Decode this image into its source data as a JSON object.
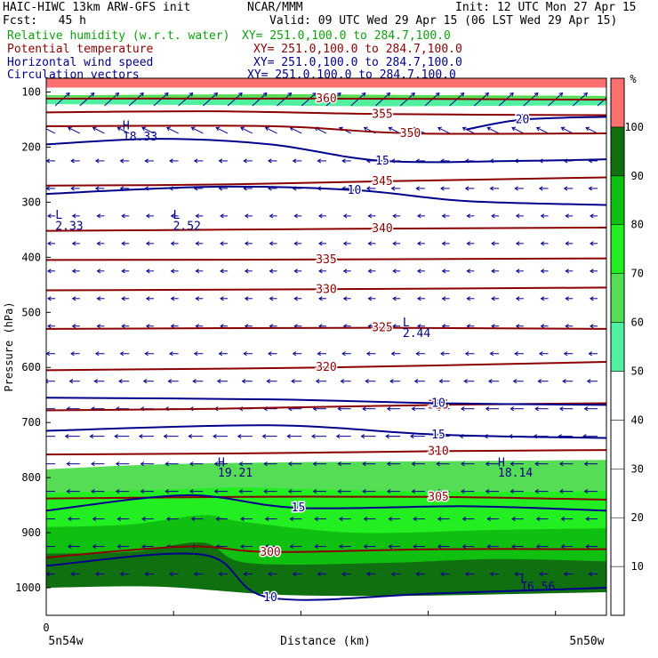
{
  "header": {
    "left1": "HAIC-HIWC 13km ARW-GFS init",
    "center1": "NCAR/MMM",
    "right1": "Init: 12 UTC Mon 27 Apr 15",
    "left2": "Fcst:   45 h",
    "right2": "Valid: 09 UTC Wed 29 Apr 15 (06 LST Wed 29 Apr 15)",
    "fields": [
      {
        "name": "Relative humidity (w.r.t. water)",
        "xy": "XY= 251.0,100.0 to 284.7,100.0"
      },
      {
        "name": "Potential temperature",
        "xy": "XY= 251.0,100.0 to 284.7,100.0"
      },
      {
        "name": "Horizontal wind speed",
        "xy": "XY= 251.0,100.0 to 284.7,100.0"
      },
      {
        "name": "Circulation vectors",
        "xy": "XY= 251.0,100.0 to 284.7,100.0"
      }
    ]
  },
  "colors": {
    "rh": "#10a010",
    "theta": "#8b0000",
    "wind": "#00008b",
    "vectors": "#00008b",
    "rh_bins": [
      "#ffffff",
      "#ffffff",
      "#ffffff",
      "#ffffff",
      "#ffffff",
      "#50f0a0",
      "#56dd56",
      "#22ee22",
      "#10c010",
      "#107010",
      "#ff7070"
    ]
  },
  "chart_data": {
    "type": "vertical cross-section",
    "xlabel": "Distance (km)",
    "ylabel": "Pressure (hPa)",
    "x_tick_zero": "0",
    "x_left_label": "5n54w",
    "x_right_label": "5n50w",
    "y_ticks": [
      100,
      200,
      300,
      400,
      500,
      600,
      700,
      800,
      900,
      1000
    ],
    "ylim": [
      1050,
      75
    ],
    "colorbar": {
      "unit": "%",
      "ticks": [
        10,
        20,
        30,
        40,
        50,
        60,
        70,
        80,
        90,
        100
      ]
    },
    "rh_fill": [
      {
        "level": 100,
        "top": [
          [
            0,
            75
          ],
          [
            100,
            75
          ]
        ],
        "bottom": [
          [
            0,
            92
          ],
          [
            100,
            92
          ]
        ]
      },
      {
        "level": 60,
        "top": [
          [
            0,
            106
          ],
          [
            40,
            104
          ],
          [
            60,
            105
          ],
          [
            100,
            107
          ]
        ],
        "bottom": [
          [
            0,
            110
          ],
          [
            100,
            112
          ]
        ]
      },
      {
        "level": 50,
        "top": [
          [
            0,
            112
          ],
          [
            35,
            110
          ],
          [
            60,
            113
          ],
          [
            100,
            112
          ]
        ],
        "bottom": [
          [
            0,
            122
          ],
          [
            35,
            124
          ],
          [
            60,
            126
          ],
          [
            100,
            124
          ]
        ]
      },
      {
        "level": 60,
        "top": [
          [
            0,
            785
          ],
          [
            20,
            776
          ],
          [
            45,
            772
          ],
          [
            75,
            770
          ],
          [
            100,
            768
          ]
        ],
        "bottom": [
          [
            0,
            1050
          ],
          [
            100,
            1050
          ]
        ]
      },
      {
        "level": 70,
        "top": [
          [
            0,
            828
          ],
          [
            20,
            822
          ],
          [
            35,
            818
          ],
          [
            55,
            823
          ],
          [
            80,
            826
          ],
          [
            100,
            824
          ]
        ],
        "bottom": [
          [
            0,
            1050
          ],
          [
            100,
            1050
          ]
        ]
      },
      {
        "level": 80,
        "top": [
          [
            0,
            890
          ],
          [
            15,
            885
          ],
          [
            28,
            868
          ],
          [
            35,
            880
          ],
          [
            55,
            900
          ],
          [
            80,
            895
          ],
          [
            100,
            892
          ]
        ],
        "bottom": [
          [
            0,
            1050
          ],
          [
            100,
            1050
          ]
        ]
      },
      {
        "level": 90,
        "top": [
          [
            0,
            938
          ],
          [
            15,
            935
          ],
          [
            28,
            918
          ],
          [
            36,
            955
          ],
          [
            60,
            955
          ],
          [
            80,
            948
          ],
          [
            100,
            952
          ]
        ],
        "bottom": [
          [
            0,
            1050
          ],
          [
            100,
            1050
          ]
        ]
      },
      {
        "level": 0,
        "top": [
          [
            0,
            1000
          ],
          [
            20,
            998
          ],
          [
            40,
            1012
          ],
          [
            60,
            1015
          ],
          [
            80,
            1012
          ],
          [
            100,
            1008
          ]
        ],
        "bottom": [
          [
            0,
            1050
          ],
          [
            100,
            1050
          ]
        ]
      }
    ],
    "theta_contours": [
      {
        "label": "340",
        "pts": [
          [
            0,
            352
          ],
          [
            30,
            350
          ],
          [
            60,
            348
          ],
          [
            100,
            346
          ]
        ]
      },
      {
        "label": "335",
        "pts": [
          [
            0,
            405
          ],
          [
            50,
            404
          ],
          [
            100,
            402
          ]
        ]
      },
      {
        "label": "330",
        "pts": [
          [
            0,
            460
          ],
          [
            50,
            458
          ],
          [
            100,
            455
          ]
        ]
      },
      {
        "label": "325",
        "pts": [
          [
            0,
            530
          ],
          [
            60,
            528
          ],
          [
            100,
            530
          ]
        ]
      },
      {
        "label": "320",
        "pts": [
          [
            0,
            605
          ],
          [
            50,
            600
          ],
          [
            100,
            590
          ]
        ]
      },
      {
        "label": "315",
        "pts": [
          [
            0,
            678
          ],
          [
            30,
            675
          ],
          [
            70,
            668
          ],
          [
            100,
            665
          ]
        ]
      },
      {
        "label": "310",
        "pts": [
          [
            0,
            758
          ],
          [
            35,
            756
          ],
          [
            70,
            752
          ],
          [
            100,
            750
          ]
        ]
      },
      {
        "label": "305",
        "pts": [
          [
            0,
            838
          ],
          [
            35,
            835
          ],
          [
            70,
            835
          ],
          [
            100,
            840
          ]
        ]
      },
      {
        "label": "300",
        "pts": [
          [
            0,
            945
          ],
          [
            25,
            925
          ],
          [
            40,
            935
          ],
          [
            70,
            930
          ],
          [
            100,
            930
          ]
        ]
      },
      {
        "label": "345",
        "pts": [
          [
            0,
            270
          ],
          [
            30,
            268
          ],
          [
            60,
            262
          ],
          [
            100,
            255
          ]
        ]
      },
      {
        "label": "350",
        "pts": [
          [
            0,
            162
          ],
          [
            40,
            162
          ],
          [
            65,
            175
          ],
          [
            100,
            175
          ]
        ]
      },
      {
        "label": "355",
        "pts": [
          [
            0,
            137
          ],
          [
            30,
            135
          ],
          [
            60,
            140
          ],
          [
            100,
            142
          ]
        ]
      },
      {
        "label": "360",
        "pts": [
          [
            0,
            112
          ],
          [
            50,
            112
          ],
          [
            100,
            114
          ]
        ]
      }
    ],
    "wind_contours": [
      {
        "label": "15",
        "pts": [
          [
            0,
            195
          ],
          [
            20,
            185
          ],
          [
            40,
            195
          ],
          [
            60,
            225
          ],
          [
            85,
            225
          ],
          [
            100,
            222
          ]
        ]
      },
      {
        "label": "10",
        "pts": [
          [
            0,
            285
          ],
          [
            30,
            272
          ],
          [
            55,
            278
          ],
          [
            75,
            298
          ],
          [
            100,
            305
          ]
        ]
      },
      {
        "label": "20",
        "pts": [
          [
            75,
            168
          ],
          [
            85,
            150
          ],
          [
            100,
            145
          ]
        ]
      },
      {
        "label": "10",
        "pts": [
          [
            0,
            655
          ],
          [
            40,
            658
          ],
          [
            70,
            665
          ],
          [
            100,
            668
          ]
        ]
      },
      {
        "label": "15",
        "pts": [
          [
            0,
            715
          ],
          [
            40,
            705
          ],
          [
            70,
            722
          ],
          [
            100,
            728
          ]
        ]
      },
      {
        "label": "15",
        "pts": [
          [
            0,
            860
          ],
          [
            25,
            832
          ],
          [
            45,
            855
          ],
          [
            75,
            852
          ],
          [
            100,
            860
          ]
        ]
      },
      {
        "label": "10",
        "pts": [
          [
            0,
            960
          ],
          [
            28,
            940
          ],
          [
            40,
            1018
          ],
          [
            70,
            1010
          ],
          [
            100,
            1000
          ]
        ]
      }
    ],
    "annotations": [
      {
        "text": "H",
        "x": 13,
        "p": 168
      },
      {
        "text": "18.33",
        "x": 13,
        "p": 188
      },
      {
        "text": "L",
        "x": 1,
        "p": 330
      },
      {
        "text": "2.33",
        "x": 1,
        "p": 350
      },
      {
        "text": "L",
        "x": 22,
        "p": 330
      },
      {
        "text": "2.52",
        "x": 22,
        "p": 350
      },
      {
        "text": "L",
        "x": 63,
        "p": 525
      },
      {
        "text": "2.44",
        "x": 63,
        "p": 545
      },
      {
        "text": "H",
        "x": 30,
        "p": 780
      },
      {
        "text": "19.21",
        "x": 30,
        "p": 798
      },
      {
        "text": "H",
        "x": 80,
        "p": 780
      },
      {
        "text": "18.14",
        "x": 80,
        "p": 798
      },
      {
        "text": "L",
        "x": 84,
        "p": 990
      },
      {
        "text": "16.56",
        "x": 84,
        "p": 1005
      }
    ],
    "vectors": {
      "direction": "westward",
      "rows": [
        {
          "p": 125,
          "u": 1.0,
          "v": -0.9
        },
        {
          "p": 175,
          "u": -0.8,
          "v": -0.4
        },
        {
          "p": 225,
          "u": -0.6,
          "v": 0.0
        },
        {
          "p": 275,
          "u": -0.6,
          "v": 0.0
        },
        {
          "p": 325,
          "u": -0.5,
          "v": 0.0
        },
        {
          "p": 375,
          "u": -0.5,
          "v": 0.0
        },
        {
          "p": 425,
          "u": -0.5,
          "v": 0.0
        },
        {
          "p": 475,
          "u": -0.5,
          "v": 0.0
        },
        {
          "p": 525,
          "u": -0.5,
          "v": 0.0
        },
        {
          "p": 575,
          "u": -0.6,
          "v": 0.0
        },
        {
          "p": 625,
          "u": -0.7,
          "v": 0.0
        },
        {
          "p": 675,
          "u": -0.9,
          "v": 0.0
        },
        {
          "p": 725,
          "u": -1.0,
          "v": 0.0
        },
        {
          "p": 775,
          "u": -0.9,
          "v": 0.0
        },
        {
          "p": 825,
          "u": -0.9,
          "v": 0.0
        },
        {
          "p": 875,
          "u": -0.8,
          "v": 0.0
        },
        {
          "p": 925,
          "u": -0.8,
          "v": 0.0
        },
        {
          "p": 975,
          "u": -0.6,
          "v": 0.0
        }
      ]
    }
  }
}
